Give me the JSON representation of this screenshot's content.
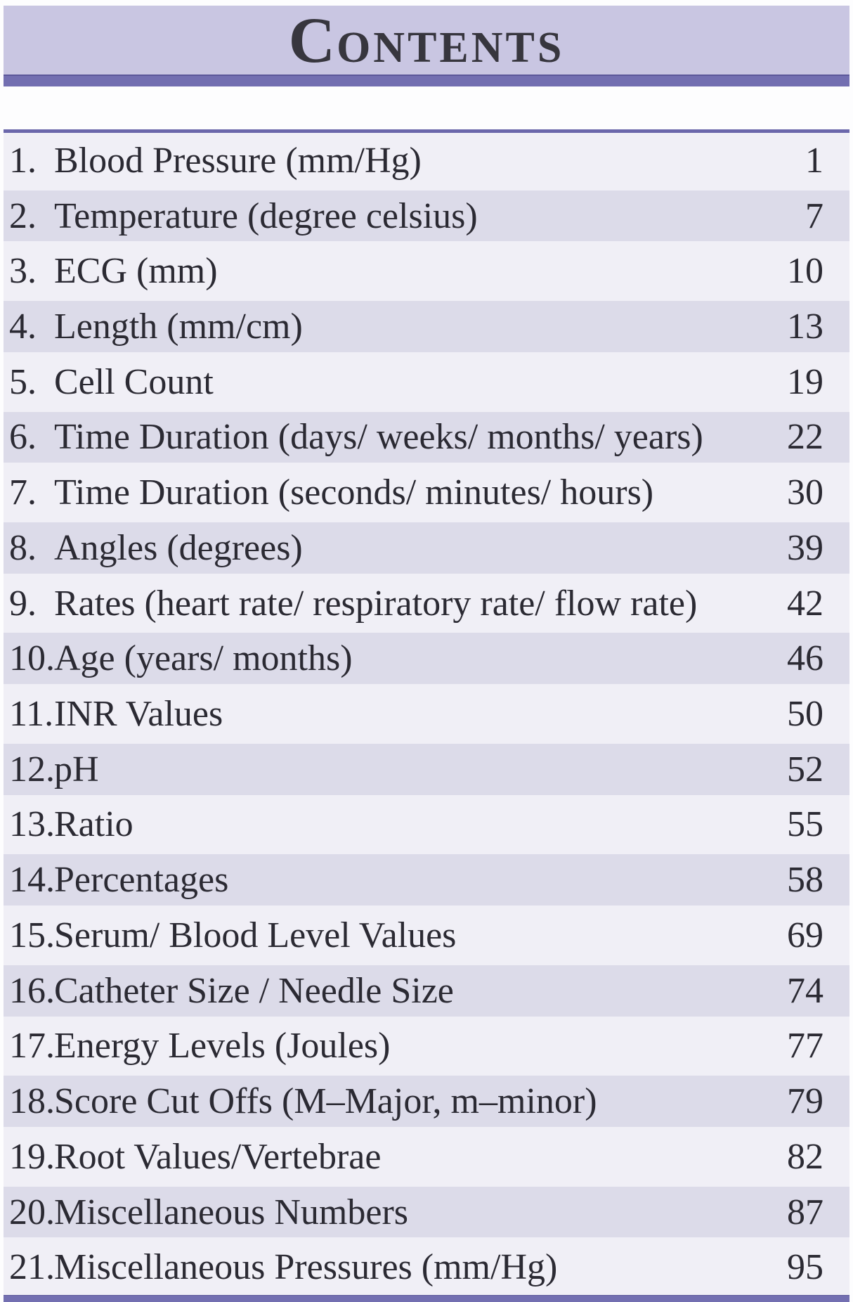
{
  "header": {
    "title": "CONTENTS",
    "title_first": "C",
    "title_rest": "ONTENTS"
  },
  "toc": {
    "entries": [
      {
        "num": "1.",
        "label": "Blood Pressure (mm/Hg)",
        "page": "1"
      },
      {
        "num": "2.",
        "label": "Temperature (degree celsius)",
        "page": "7"
      },
      {
        "num": "3.",
        "label": "ECG (mm)",
        "page": "10"
      },
      {
        "num": "4.",
        "label": "Length (mm/cm)",
        "page": "13"
      },
      {
        "num": "5.",
        "label": "Cell Count",
        "page": "19"
      },
      {
        "num": "6.",
        "label": "Time Duration (days/ weeks/ months/ years)",
        "page": "22"
      },
      {
        "num": "7.",
        "label": "Time Duration (seconds/ minutes/ hours)",
        "page": "30"
      },
      {
        "num": "8.",
        "label": "Angles (degrees)",
        "page": "39"
      },
      {
        "num": "9.",
        "label": "Rates (heart rate/ respiratory rate/ flow rate)",
        "page": "42"
      },
      {
        "num": "10.",
        "label": "Age (years/ months)",
        "page": "46"
      },
      {
        "num": "11.",
        "label": "INR Values",
        "page": "50"
      },
      {
        "num": "12.",
        "label": "pH",
        "page": "52"
      },
      {
        "num": "13.",
        "label": "Ratio",
        "page": "55"
      },
      {
        "num": "14.",
        "label": "Percentages",
        "page": "58"
      },
      {
        "num": "15.",
        "label": "Serum/ Blood Level Values",
        "page": "69"
      },
      {
        "num": "16.",
        "label": "Catheter Size / Needle Size",
        "page": "74"
      },
      {
        "num": "17.",
        "label": "Energy Levels (Joules)",
        "page": "77"
      },
      {
        "num": "18.",
        "label": "Score Cut Offs (M–Major, m–minor)",
        "page": "79"
      },
      {
        "num": "19.",
        "label": "Root Values/Vertebrae",
        "page": "82"
      },
      {
        "num": "20.",
        "label": "Miscellaneous Numbers",
        "page": "87"
      },
      {
        "num": "21.",
        "label": "Miscellaneous Pressures (mm/Hg)",
        "page": "95"
      }
    ]
  },
  "colors": {
    "header_bg": "#c9c6e2",
    "rule_purple": "#736fb1",
    "rule_purple_dark": "#5b5799",
    "row_light": "#f0eff6",
    "row_dark": "#dcdbe9",
    "text": "#2b2a33",
    "title_text": "#37363e"
  }
}
